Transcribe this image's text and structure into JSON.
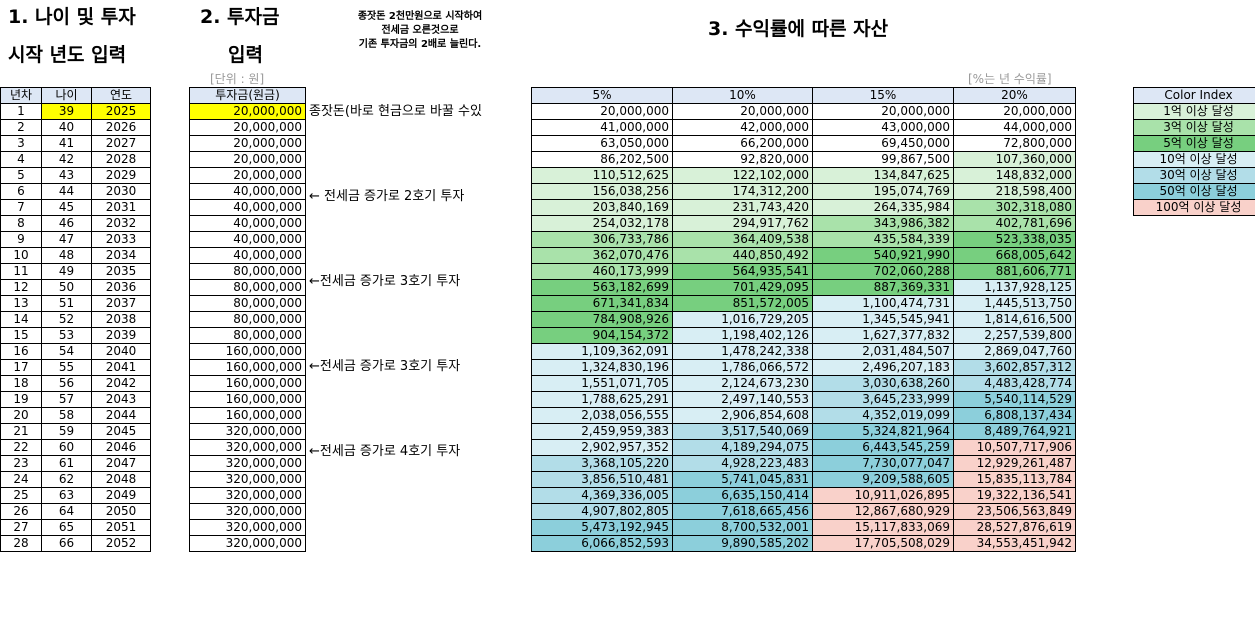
{
  "titles": {
    "t1_line1": "1. 나이 및 투자",
    "t1_line2": "시작 년도 입력",
    "t2_line1": "2. 투자금",
    "t2_line2": "입력",
    "t3": "3. 수익률에 따른 자산",
    "note_line1": "종잣돈 2천만원으로 시작하여",
    "note_line2": "전세금 오른것으로",
    "note_line3": "기존 투자금의 2배로 늘린다.",
    "unit_won": "[단위 : 원]",
    "unit_rate": "[%는 년 수익률]"
  },
  "left_table": {
    "headers": [
      "년차",
      "나이",
      "연도"
    ],
    "rows": [
      [
        "1",
        "39",
        "2025"
      ],
      [
        "2",
        "40",
        "2026"
      ],
      [
        "3",
        "41",
        "2027"
      ],
      [
        "4",
        "42",
        "2028"
      ],
      [
        "5",
        "43",
        "2029"
      ],
      [
        "6",
        "44",
        "2030"
      ],
      [
        "7",
        "45",
        "2031"
      ],
      [
        "8",
        "46",
        "2032"
      ],
      [
        "9",
        "47",
        "2033"
      ],
      [
        "10",
        "48",
        "2034"
      ],
      [
        "11",
        "49",
        "2035"
      ],
      [
        "12",
        "50",
        "2036"
      ],
      [
        "13",
        "51",
        "2037"
      ],
      [
        "14",
        "52",
        "2038"
      ],
      [
        "15",
        "53",
        "2039"
      ],
      [
        "16",
        "54",
        "2040"
      ],
      [
        "17",
        "55",
        "2041"
      ],
      [
        "18",
        "56",
        "2042"
      ],
      [
        "19",
        "57",
        "2043"
      ],
      [
        "20",
        "58",
        "2044"
      ],
      [
        "21",
        "59",
        "2045"
      ],
      [
        "22",
        "60",
        "2046"
      ],
      [
        "23",
        "61",
        "2047"
      ],
      [
        "24",
        "62",
        "2048"
      ],
      [
        "25",
        "63",
        "2049"
      ],
      [
        "26",
        "64",
        "2050"
      ],
      [
        "27",
        "65",
        "2051"
      ],
      [
        "28",
        "66",
        "2052"
      ]
    ]
  },
  "invest_table": {
    "header": "투자금(원금)",
    "values": [
      "20,000,000",
      "20,000,000",
      "20,000,000",
      "20,000,000",
      "20,000,000",
      "40,000,000",
      "40,000,000",
      "40,000,000",
      "40,000,000",
      "40,000,000",
      "80,000,000",
      "80,000,000",
      "80,000,000",
      "80,000,000",
      "80,000,000",
      "160,000,000",
      "160,000,000",
      "160,000,000",
      "160,000,000",
      "160,000,000",
      "320,000,000",
      "320,000,000",
      "320,000,000",
      "320,000,000",
      "320,000,000",
      "320,000,000",
      "320,000,000",
      "320,000,000"
    ]
  },
  "annotations": [
    {
      "row": 0,
      "text": "종잣돈(바로 현금으로 바꿀 수있"
    },
    {
      "row": 5,
      "text": "← 전세금 증가로 2호기 투자"
    },
    {
      "row": 10,
      "text": "←전세금 증가로 3호기 투자"
    },
    {
      "row": 15,
      "text": "←전세금 증가로 3호기 투자"
    },
    {
      "row": 20,
      "text": "←전세금 증가로 4호기 투자"
    }
  ],
  "asset_table": {
    "headers": [
      "5%",
      "10%",
      "15%",
      "20%"
    ],
    "rows": [
      [
        "20,000,000",
        "20,000,000",
        "20,000,000",
        "20,000,000"
      ],
      [
        "41,000,000",
        "42,000,000",
        "43,000,000",
        "44,000,000"
      ],
      [
        "63,050,000",
        "66,200,000",
        "69,450,000",
        "72,800,000"
      ],
      [
        "86,202,500",
        "92,820,000",
        "99,867,500",
        "107,360,000"
      ],
      [
        "110,512,625",
        "122,102,000",
        "134,847,625",
        "148,832,000"
      ],
      [
        "156,038,256",
        "174,312,200",
        "195,074,769",
        "218,598,400"
      ],
      [
        "203,840,169",
        "231,743,420",
        "264,335,984",
        "302,318,080"
      ],
      [
        "254,032,178",
        "294,917,762",
        "343,986,382",
        "402,781,696"
      ],
      [
        "306,733,786",
        "364,409,538",
        "435,584,339",
        "523,338,035"
      ],
      [
        "362,070,476",
        "440,850,492",
        "540,921,990",
        "668,005,642"
      ],
      [
        "460,173,999",
        "564,935,541",
        "702,060,288",
        "881,606,771"
      ],
      [
        "563,182,699",
        "701,429,095",
        "887,369,331",
        "1,137,928,125"
      ],
      [
        "671,341,834",
        "851,572,005",
        "1,100,474,731",
        "1,445,513,750"
      ],
      [
        "784,908,926",
        "1,016,729,205",
        "1,345,545,941",
        "1,814,616,500"
      ],
      [
        "904,154,372",
        "1,198,402,126",
        "1,627,377,832",
        "2,257,539,800"
      ],
      [
        "1,109,362,091",
        "1,478,242,338",
        "2,031,484,507",
        "2,869,047,760"
      ],
      [
        "1,324,830,196",
        "1,786,066,572",
        "2,496,207,183",
        "3,602,857,312"
      ],
      [
        "1,551,071,705",
        "2,124,673,230",
        "3,030,638,260",
        "4,483,428,774"
      ],
      [
        "1,788,625,291",
        "2,497,140,553",
        "3,645,233,999",
        "5,540,114,529"
      ],
      [
        "2,038,056,555",
        "2,906,854,608",
        "4,352,019,099",
        "6,808,137,434"
      ],
      [
        "2,459,959,383",
        "3,517,540,069",
        "5,324,821,964",
        "8,489,764,921"
      ],
      [
        "2,902,957,352",
        "4,189,294,075",
        "6,443,545,259",
        "10,507,717,906"
      ],
      [
        "3,368,105,220",
        "4,928,223,483",
        "7,730,077,047",
        "12,929,261,487"
      ],
      [
        "3,856,510,481",
        "5,741,045,831",
        "9,209,588,605",
        "15,835,113,784"
      ],
      [
        "4,369,336,005",
        "6,635,150,414",
        "10,911,026,895",
        "19,322,136,541"
      ],
      [
        "4,907,802,805",
        "7,618,665,456",
        "12,867,680,929",
        "23,506,563,849"
      ],
      [
        "5,473,192,945",
        "8,700,532,001",
        "15,117,833,069",
        "28,527,876,619"
      ],
      [
        "6,066,852,593",
        "9,890,585,202",
        "17,705,508,029",
        "34,553,451,942"
      ]
    ]
  },
  "color_index": {
    "header": "Color Index",
    "items": [
      {
        "label": "1억 이상 달성",
        "color": "#d8f1d8"
      },
      {
        "label": "3억 이상 달성",
        "color": "#a9e2aa"
      },
      {
        "label": "5억 이상 달성",
        "color": "#77cf7f"
      },
      {
        "label": "10억 이상 달성",
        "color": "#d8eef4"
      },
      {
        "label": "30억 이상 달성",
        "color": "#b2dde8"
      },
      {
        "label": "50억 이상 달성",
        "color": "#8ccfdb"
      },
      {
        "label": "100억 이상 달성",
        "color": "#f9d1ca"
      }
    ]
  },
  "colors": {
    "header_bg": "#dde7f5",
    "input_highlight": "#ffff00"
  }
}
